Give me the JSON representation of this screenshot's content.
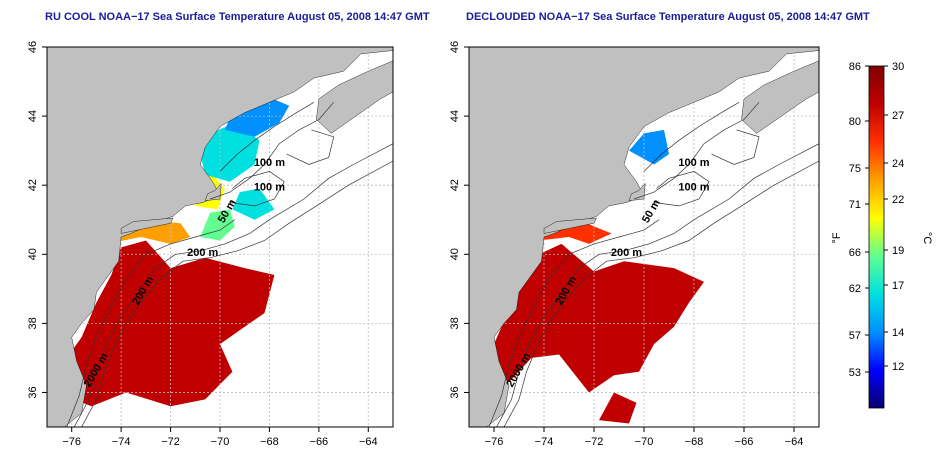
{
  "titles": {
    "left": "RU COOL NOAA−17 Sea Surface Temperature August 05, 2008 14:47 GMT",
    "right": "DECLOUDED NOAA−17 Sea Surface Temperature August 05, 2008 14:47 GMT"
  },
  "chart_data": [
    {
      "type": "heatmap",
      "title": "RU COOL NOAA−17 Sea Surface Temperature August 05, 2008 14:47 GMT",
      "x_ticks": [
        -76,
        -74,
        -72,
        -70,
        -68,
        -66,
        -64
      ],
      "y_ticks": [
        36,
        38,
        40,
        42,
        44,
        46
      ],
      "xlim": [
        -77,
        -63
      ],
      "ylim": [
        35,
        46
      ],
      "contour_labels": [
        "100 m",
        "100 m",
        "50 m",
        "200 m",
        "200 m",
        "2000 m"
      ],
      "colors": {
        "land": "#c0c0c0",
        "ocean_missing": "#ffffff",
        "grid": "#bdbdbd"
      }
    },
    {
      "type": "heatmap",
      "title": "DECLOUDED NOAA−17 Sea Surface Temperature August 05, 2008 14:47 GMT",
      "x_ticks": [
        -76,
        -74,
        -72,
        -70,
        -68,
        -66,
        -64
      ],
      "y_ticks": [
        36,
        38,
        40,
        42,
        44,
        46
      ],
      "xlim": [
        -77,
        -63
      ],
      "ylim": [
        35,
        46
      ],
      "contour_labels": [
        "100 m",
        "100 m",
        "50 m",
        "200 m",
        "200 m",
        "2000 m"
      ],
      "colors": {
        "land": "#c0c0c0",
        "ocean_missing": "#ffffff",
        "grid": "#bdbdbd"
      }
    }
  ],
  "colorbar": {
    "fahrenheit_ticks": [
      86,
      80,
      75,
      71,
      66,
      62,
      57,
      53
    ],
    "celsius_ticks": [
      30,
      27,
      24,
      22,
      19,
      17,
      14,
      12
    ],
    "fahrenheit_label": "°F",
    "celsius_label": "°C",
    "range_c": [
      10,
      30
    ],
    "stops": [
      "#08006e",
      "#0000ff",
      "#0090ff",
      "#00e0e0",
      "#60ff90",
      "#ffff00",
      "#ffa000",
      "#ff3000",
      "#c00000",
      "#800000"
    ]
  }
}
